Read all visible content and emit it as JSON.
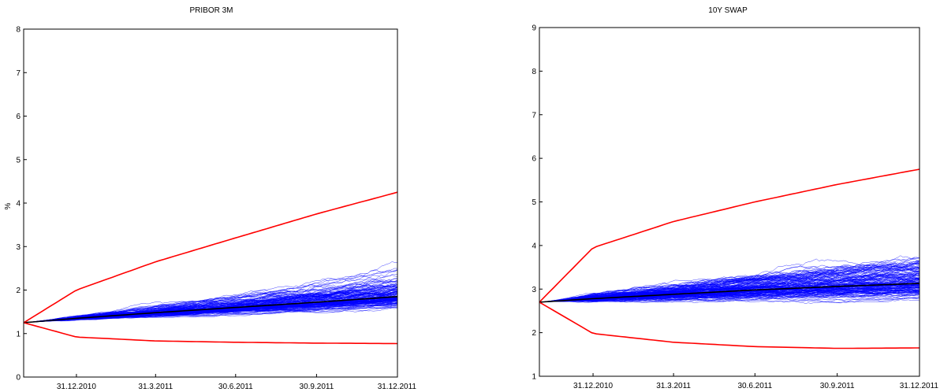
{
  "chart_data": [
    {
      "type": "line",
      "title": "PRIBOR 3M",
      "ylabel": "%",
      "xlabel": "",
      "ylim": [
        0,
        8
      ],
      "yticks": [
        0,
        1,
        2,
        3,
        4,
        5,
        6,
        7,
        8
      ],
      "xlim": [
        "2010-11-01",
        "2011-12-31"
      ],
      "xticks": [
        {
          "date": "2010-12-31",
          "label": "31.12.2010"
        },
        {
          "date": "2011-03-31",
          "label": "31.3.2011"
        },
        {
          "date": "2011-06-30",
          "label": "30.6.2011"
        },
        {
          "date": "2011-09-30",
          "label": "30.9.2011"
        },
        {
          "date": "2011-12-31",
          "label": "31.12.2011"
        }
      ],
      "grid": false,
      "simulated_paths": {
        "start_value": 1.25,
        "color": "#0000ff"
      },
      "series": [
        {
          "color": "#ff0000",
          "x": [
            "2010-11-01",
            "2010-12-31",
            "2011-03-31",
            "2011-06-30",
            "2011-09-30",
            "2011-12-31"
          ],
          "values": [
            1.25,
            2.0,
            2.65,
            3.2,
            3.75,
            4.25
          ]
        },
        {
          "color": "#000000",
          "x": [
            "2010-11-01",
            "2010-12-31",
            "2011-03-31",
            "2011-06-30",
            "2011-09-30",
            "2011-12-31"
          ],
          "values": [
            1.25,
            1.35,
            1.48,
            1.6,
            1.72,
            1.85
          ]
        },
        {
          "color": "#ff0000",
          "x": [
            "2010-11-01",
            "2010-12-31",
            "2011-03-31",
            "2011-06-30",
            "2011-09-30",
            "2011-12-31"
          ],
          "values": [
            1.25,
            0.92,
            0.83,
            0.8,
            0.78,
            0.77
          ]
        }
      ]
    },
    {
      "type": "line",
      "title": "10Y SWAP",
      "ylabel": "",
      "xlabel": "",
      "ylim": [
        1,
        9
      ],
      "yticks": [
        1,
        2,
        3,
        4,
        5,
        6,
        7,
        8,
        9
      ],
      "xlim": [
        "2010-11-01",
        "2011-12-31"
      ],
      "xticks": [
        {
          "date": "2010-12-31",
          "label": "31.12.2010"
        },
        {
          "date": "2011-03-31",
          "label": "31.3.2011"
        },
        {
          "date": "2011-06-30",
          "label": "30.6.2011"
        },
        {
          "date": "2011-09-30",
          "label": "30.9.2011"
        },
        {
          "date": "2011-12-31",
          "label": "31.12.2011"
        }
      ],
      "grid": false,
      "simulated_paths": {
        "start_value": 2.7,
        "color": "#0000ff"
      },
      "series": [
        {
          "color": "#ff0000",
          "x": [
            "2010-11-01",
            "2010-12-31",
            "2011-03-31",
            "2011-06-30",
            "2011-09-30",
            "2011-12-31"
          ],
          "values": [
            2.7,
            3.95,
            4.55,
            5.0,
            5.4,
            5.75
          ]
        },
        {
          "color": "#000000",
          "x": [
            "2010-11-01",
            "2010-12-31",
            "2011-03-31",
            "2011-06-30",
            "2011-09-30",
            "2011-12-31"
          ],
          "values": [
            2.7,
            2.78,
            2.88,
            2.98,
            3.06,
            3.13
          ]
        },
        {
          "color": "#ff0000",
          "x": [
            "2010-11-01",
            "2010-12-31",
            "2011-03-31",
            "2011-06-30",
            "2011-09-30",
            "2011-12-31"
          ],
          "values": [
            2.7,
            1.98,
            1.78,
            1.68,
            1.64,
            1.65
          ]
        }
      ]
    }
  ]
}
